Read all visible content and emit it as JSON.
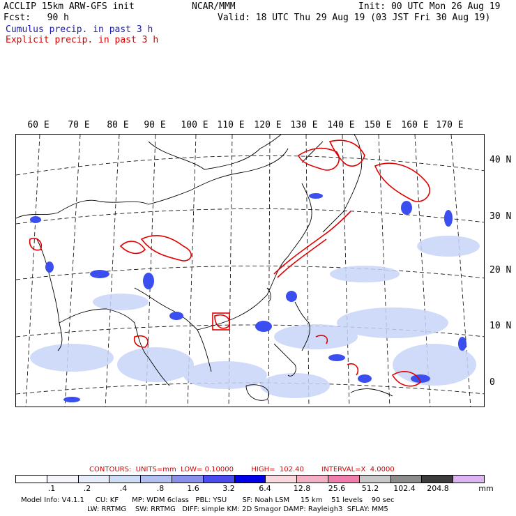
{
  "header": {
    "title_left": "ACCLIP 15km ARW-GFS init",
    "fcst": "Fcst:   90 h",
    "center": "NCAR/MMM",
    "init": "Init: 00 UTC Mon 26 Aug 19",
    "valid": "Valid: 18 UTC Thu 29 Aug 19 (03 JST Fri 30 Aug 19)",
    "cumulus": "Cumulus precip. in past 3 h",
    "explicit": "Explicit precip. in past 3 h"
  },
  "map": {
    "lon_labels": [
      "60 E",
      "70 E",
      "80 E",
      "90 E",
      "100 E",
      "110 E",
      "120 E",
      "130 E",
      "140 E",
      "150 E",
      "160 E",
      "170 E"
    ],
    "lat_labels": [
      "40 N",
      "30 N",
      "20 N",
      "10 N",
      "0"
    ],
    "colors": {
      "cumulus": "#3b4ef0",
      "cumulus_light": "#c8d4f8",
      "explicit": "#e00000",
      "coast": "#000000",
      "grid": "#000000"
    }
  },
  "contour_line": {
    "label": "CONTOURS:  UNITS=mm  LOW= 0.10000        HIGH=  102.40        INTERVAL=X  4.0000"
  },
  "legend": {
    "colors": [
      "#ffffff",
      "#f4f6fc",
      "#e6ecfa",
      "#cfdcf6",
      "#b2bff0",
      "#8890ec",
      "#4c4cee",
      "#0000e6",
      "#f8d8dc",
      "#f4b0c4",
      "#ee7eac",
      "#c8c8c8",
      "#8c8c8c",
      "#3c3c3c",
      "#dcb4f4"
    ],
    "ticks": [
      ".1",
      ".2",
      ".4",
      ".8",
      "1.6",
      "3.2",
      "6.4",
      "12.8",
      "25.6",
      "51.2",
      "102.4",
      "204.8"
    ],
    "unit": "mm"
  },
  "footer": {
    "line1": "Model Info: V4.1.1     CU: KF      MP: WDM 6class   PBL: YSU       SF: Noah LSM     15 km    51 levels    90 sec",
    "line2": "LW: RRTMG    SW: RRTMG   DIFF: simple KM: 2D Smagor DAMP: Rayleigh3  SFLAY: MM5"
  }
}
